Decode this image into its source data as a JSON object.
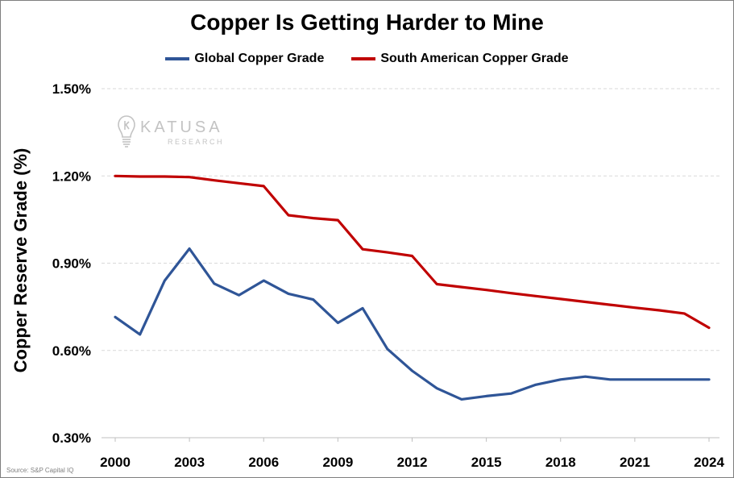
{
  "chart_data": {
    "type": "line",
    "title": "Copper Is Getting Harder to Mine",
    "ylabel": "Copper Reserve Grade (%)",
    "xlabel": "",
    "ylim": [
      0.3,
      1.5
    ],
    "yticks": [
      "0.30%",
      "0.60%",
      "0.90%",
      "1.20%",
      "1.50%"
    ],
    "ytick_values": [
      0.3,
      0.6,
      0.9,
      1.2,
      1.5
    ],
    "xticks": [
      "2000",
      "2003",
      "2006",
      "2009",
      "2012",
      "2015",
      "2018",
      "2021",
      "2024"
    ],
    "xtick_values": [
      2000,
      2003,
      2006,
      2009,
      2012,
      2015,
      2018,
      2021,
      2024
    ],
    "xlim": [
      2000,
      2024
    ],
    "grid": "horizontal dashed",
    "legend_position": "top-center",
    "x": [
      2000,
      2001,
      2002,
      2003,
      2004,
      2005,
      2006,
      2007,
      2008,
      2009,
      2010,
      2011,
      2012,
      2013,
      2014,
      2015,
      2016,
      2017,
      2018,
      2019,
      2020,
      2021,
      2022,
      2023,
      2024
    ],
    "series": [
      {
        "name": "Global Copper Grade",
        "color": "#2f5597",
        "values": [
          0.715,
          0.655,
          0.84,
          0.95,
          0.83,
          0.79,
          0.84,
          0.795,
          0.775,
          0.695,
          0.745,
          0.605,
          0.53,
          0.47,
          0.432,
          0.443,
          0.452,
          0.482,
          0.5,
          0.51,
          0.5,
          0.5,
          0.5,
          0.5,
          0.5
        ]
      },
      {
        "name": "South American Copper Grade",
        "color": "#c00000",
        "values": [
          1.2,
          1.198,
          1.198,
          1.196,
          1.185,
          1.175,
          1.165,
          1.065,
          1.055,
          1.048,
          0.948,
          0.937,
          0.925,
          0.828,
          0.818,
          0.808,
          0.797,
          0.787,
          0.777,
          0.767,
          0.757,
          0.747,
          0.738,
          0.727,
          0.678
        ]
      }
    ]
  },
  "watermark": {
    "brand": "KATUSA",
    "sub": "RESEARCH"
  },
  "source_note": "Source: S&P Capital IQ"
}
